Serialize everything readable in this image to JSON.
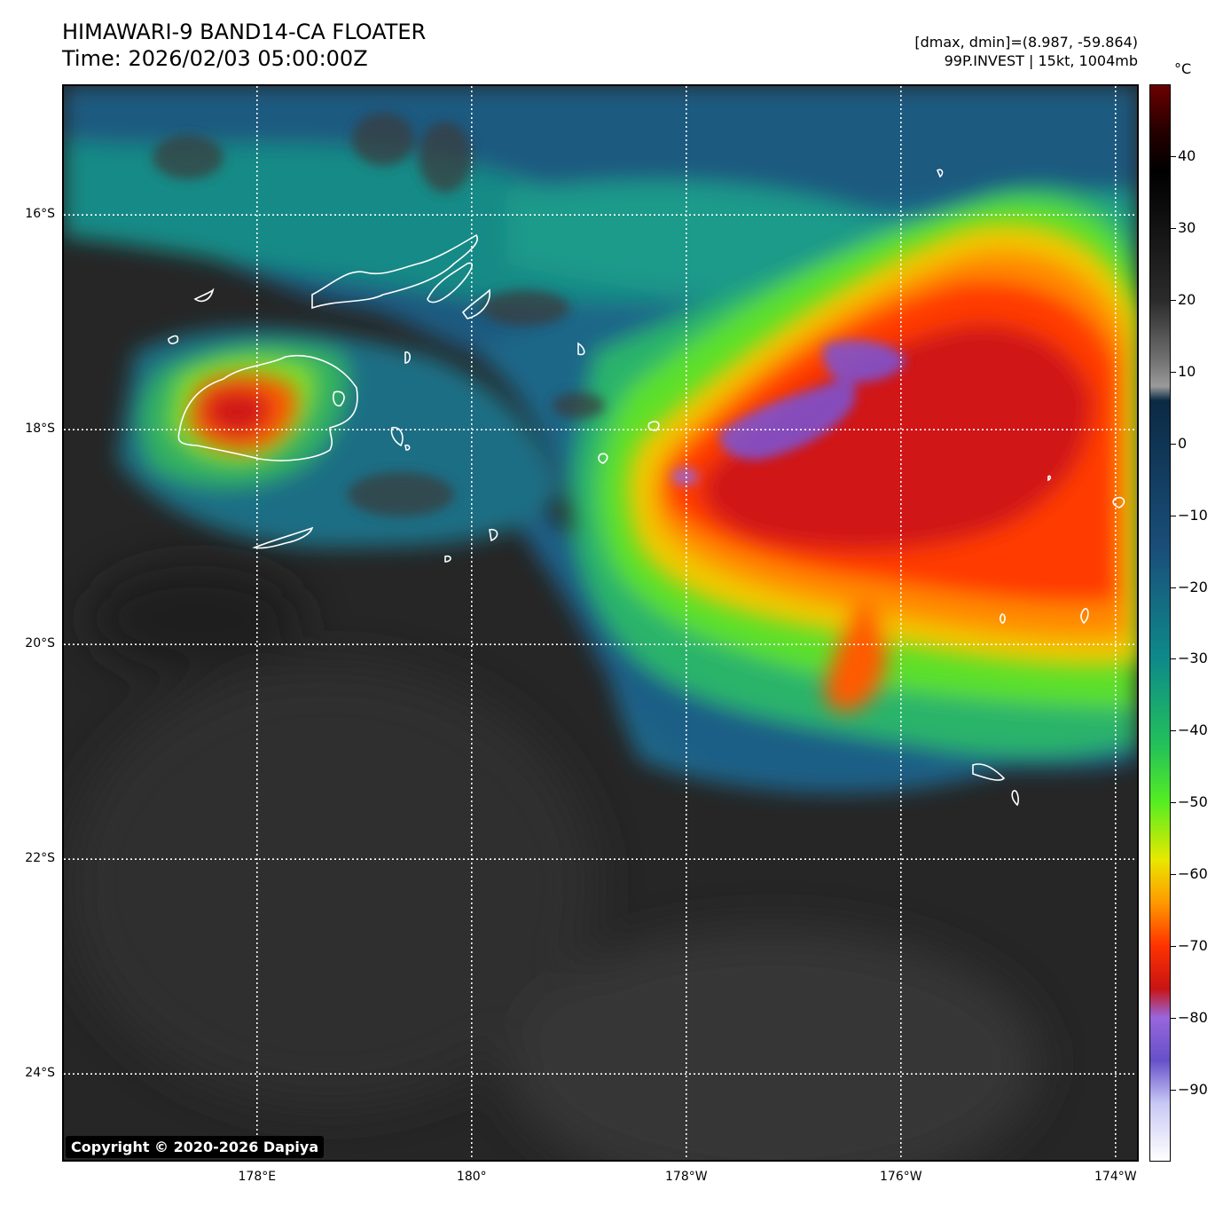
{
  "header": {
    "title_line1": "HIMAWARI-9 BAND14-CA FLOATER",
    "title_line2": "Time: 2026/02/03 05:00:00Z",
    "range_text": "[dmax, dmin]=(8.987, -59.864)",
    "storm_text": "99P.INVEST | 15kt, 1004mb"
  },
  "map": {
    "copyright": "Copyright © 2020-2026 Dapiya",
    "latitude_labels": [
      {
        "text": "16°S",
        "value": -16
      },
      {
        "text": "18°S",
        "value": -18
      },
      {
        "text": "20°S",
        "value": -20
      },
      {
        "text": "22°S",
        "value": -22
      },
      {
        "text": "24°S",
        "value": -24
      }
    ],
    "longitude_labels": [
      {
        "text": "178°E",
        "value": 178
      },
      {
        "text": "180°",
        "value": 180
      },
      {
        "text": "178°W",
        "value": -178
      },
      {
        "text": "176°W",
        "value": -176
      },
      {
        "text": "174°W",
        "value": -174
      }
    ],
    "lat_range": [
      -24.8,
      -14.8
    ],
    "lon_range": [
      176.2,
      186.2
    ],
    "grid_color": "#ffffff",
    "coastline_color": "#ffffff"
  },
  "colorbar": {
    "unit": "°C",
    "range": [
      -100,
      50
    ],
    "tick_labels": [
      "40",
      "30",
      "20",
      "10",
      "0",
      "−10",
      "−20",
      "−30",
      "−40",
      "−50",
      "−60",
      "−70",
      "−80",
      "−90"
    ],
    "tick_values": [
      40,
      30,
      20,
      10,
      0,
      -10,
      -20,
      -30,
      -40,
      -50,
      -60,
      -70,
      -80,
      -90
    ],
    "color_stops": [
      {
        "value": 50,
        "color": "#6b0000"
      },
      {
        "value": 44,
        "color": "#2a0000"
      },
      {
        "value": 38,
        "color": "#000000"
      },
      {
        "value": 20,
        "color": "#2b2b2b"
      },
      {
        "value": 12,
        "color": "#6e6e6e"
      },
      {
        "value": 8,
        "color": "#9a9a9a"
      },
      {
        "value": 6,
        "color": "#0b2a44"
      },
      {
        "value": -15,
        "color": "#1a4f7a"
      },
      {
        "value": -30,
        "color": "#0e8a8a"
      },
      {
        "value": -42,
        "color": "#22c05a"
      },
      {
        "value": -50,
        "color": "#55ee22"
      },
      {
        "value": -58,
        "color": "#e8e800"
      },
      {
        "value": -64,
        "color": "#ff9900"
      },
      {
        "value": -70,
        "color": "#ff3300"
      },
      {
        "value": -76,
        "color": "#c81414"
      },
      {
        "value": -80,
        "color": "#9966dd"
      },
      {
        "value": -86,
        "color": "#6650c8"
      },
      {
        "value": -92,
        "color": "#c8c8f5"
      },
      {
        "value": -100,
        "color": "#ffffff"
      }
    ]
  }
}
